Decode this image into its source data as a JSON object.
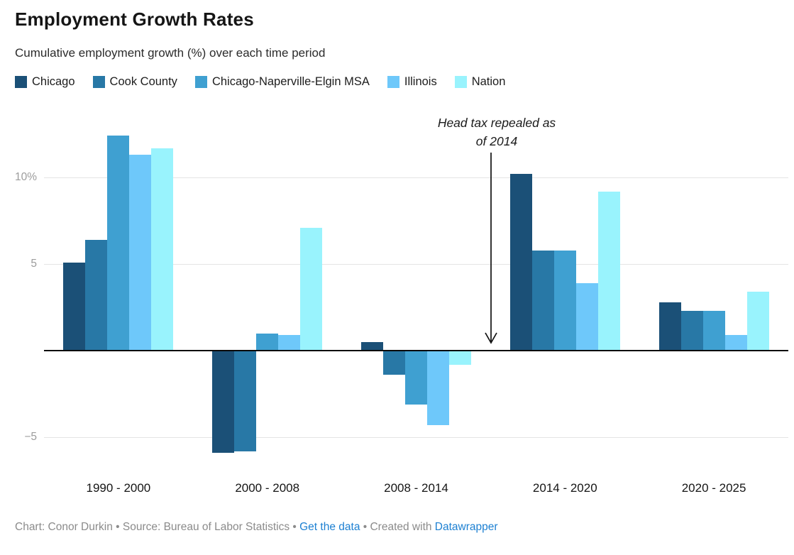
{
  "header": {
    "title": "Employment Growth Rates",
    "subtitle": "Cumulative employment growth (%) over each time period"
  },
  "chart_data": {
    "type": "bar",
    "title": "Employment Growth Rates",
    "subtitle": "Cumulative employment growth (%) over each time period",
    "categories": [
      "1990 - 2000",
      "2000 - 2008",
      "2008 - 2014",
      "2014 - 2020",
      "2020 - 2025"
    ],
    "series": [
      {
        "name": "Chicago",
        "color": "#1b5077",
        "values": [
          5.1,
          -5.9,
          0.5,
          10.2,
          2.8
        ]
      },
      {
        "name": "Cook County",
        "color": "#2878a6",
        "values": [
          6.4,
          -5.8,
          -1.4,
          5.8,
          2.3
        ]
      },
      {
        "name": "Chicago-Naperville-Elgin MSA",
        "color": "#3fa0d1",
        "values": [
          12.4,
          1.0,
          -3.1,
          5.8,
          2.3
        ]
      },
      {
        "name": "Illinois",
        "color": "#6ec8fa",
        "values": [
          11.3,
          0.9,
          -4.3,
          3.9,
          0.9
        ]
      },
      {
        "name": "Nation",
        "color": "#99f3fd",
        "values": [
          11.7,
          7.1,
          -0.8,
          9.2,
          3.4
        ]
      }
    ],
    "xlabel": "",
    "ylabel": "",
    "ylim": [
      -6.8,
      13.9
    ],
    "grid": true,
    "legend_position": "top",
    "y_axis_ticks": [
      {
        "value": 10,
        "label": "10%"
      },
      {
        "value": 5,
        "label": "5"
      },
      {
        "value": -5,
        "label": "−5"
      }
    ],
    "annotation": {
      "line1": "Head tax repealed as",
      "line2": "of 2014",
      "arrow_points_to": "start of 2014 - 2020 period at zero line"
    }
  },
  "footer": {
    "credit_prefix": "Chart: Conor Durkin • Source: Bureau of Labor Statistics • ",
    "link_get_data": "Get the data",
    "credit_middle": " • Created with ",
    "link_datawrapper": "Datawrapper",
    "link_color": "#1d80d2"
  }
}
